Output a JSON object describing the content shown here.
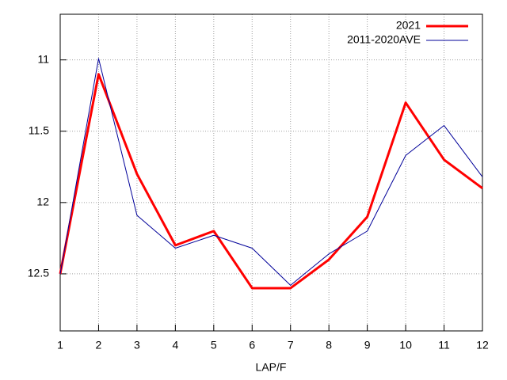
{
  "chart_data": {
    "type": "line",
    "x": [
      1,
      2,
      3,
      4,
      5,
      6,
      7,
      8,
      9,
      10,
      11,
      12
    ],
    "xlabel": "LAP/F",
    "xlim": [
      1,
      12
    ],
    "xticks": [
      1,
      2,
      3,
      4,
      5,
      6,
      7,
      8,
      9,
      10,
      11,
      12
    ],
    "ylim": [
      12.9,
      10.68
    ],
    "yticks": [
      11,
      11.5,
      12,
      12.5
    ],
    "grid": true,
    "legend": "top-right",
    "series": [
      {
        "name": "2021",
        "color": "#ff0000",
        "width": 3,
        "values": [
          12.5,
          11.1,
          11.8,
          12.3,
          12.2,
          12.6,
          12.6,
          12.4,
          12.1,
          11.3,
          11.7,
          11.9
        ]
      },
      {
        "name": "2011-2020AVE",
        "color": "#000099",
        "width": 1,
        "values": [
          12.5,
          10.99,
          12.09,
          12.32,
          12.23,
          12.32,
          12.58,
          12.36,
          12.2,
          11.67,
          11.46,
          11.82
        ]
      }
    ]
  }
}
